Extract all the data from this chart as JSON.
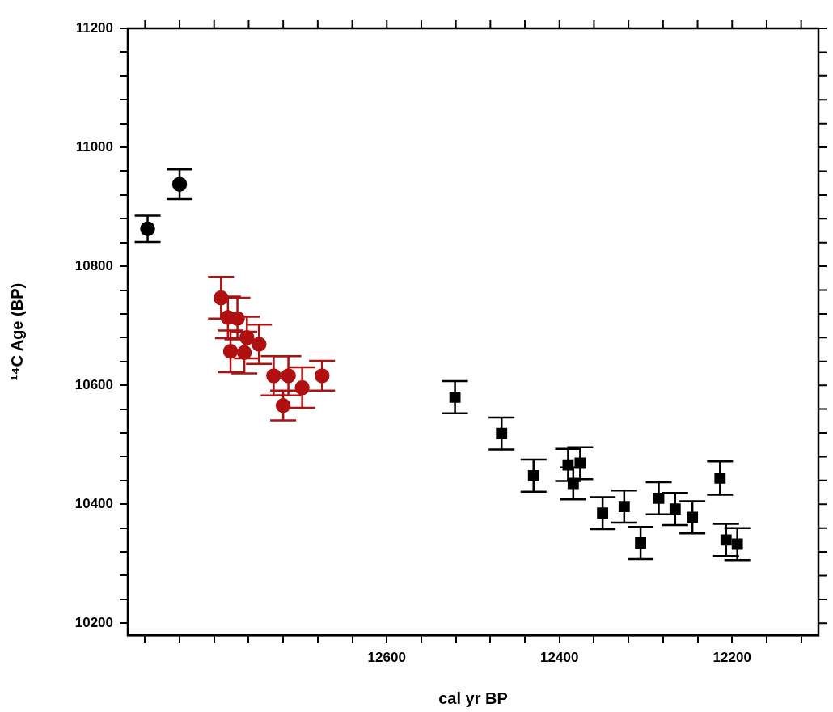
{
  "chart_data": {
    "type": "scatter",
    "xlabel": "cal yr BP",
    "ylabel": "¹⁴C Age (BP)",
    "xlim": [
      12900,
      12100
    ],
    "xticks": [
      {
        "value": 12880,
        "label": null
      },
      {
        "value": 12840,
        "label": null
      },
      {
        "value": 12800,
        "label": null
      },
      {
        "value": 12760,
        "label": null
      },
      {
        "value": 12720,
        "label": null
      },
      {
        "value": 12680,
        "label": null
      },
      {
        "value": 12640,
        "label": null
      },
      12600,
      {
        "value": 12560,
        "label": null
      },
      {
        "value": 12520,
        "label": null
      },
      {
        "value": 12480,
        "label": null
      },
      {
        "value": 12440,
        "label": null
      },
      12400,
      {
        "value": 12360,
        "label": null
      },
      {
        "value": 12320,
        "label": null
      },
      {
        "value": 12280,
        "label": null
      },
      {
        "value": 12240,
        "label": null
      },
      12200,
      {
        "value": 12160,
        "label": null
      },
      {
        "value": 12120,
        "label": null
      }
    ],
    "ylim": [
      10180,
      11200
    ],
    "yticks": [
      10200,
      {
        "value": 10240,
        "label": null
      },
      {
        "value": 10280,
        "label": null
      },
      {
        "value": 10320,
        "label": null
      },
      {
        "value": 10360,
        "label": null
      },
      10400,
      {
        "value": 10440,
        "label": null
      },
      {
        "value": 10480,
        "label": null
      },
      {
        "value": 10520,
        "label": null
      },
      {
        "value": 10560,
        "label": null
      },
      10600,
      {
        "value": 10640,
        "label": null
      },
      {
        "value": 10680,
        "label": null
      },
      {
        "value": 10720,
        "label": null
      },
      {
        "value": 10760,
        "label": null
      },
      10800,
      {
        "value": 10840,
        "label": null
      },
      {
        "value": 10880,
        "label": null
      },
      {
        "value": 10920,
        "label": null
      },
      {
        "value": 10960,
        "label": null
      },
      11000,
      {
        "value": 11040,
        "label": null
      },
      {
        "value": 11080,
        "label": null
      },
      {
        "value": 11120,
        "label": null
      },
      {
        "value": 11160,
        "label": null
      },
      11200
    ],
    "grid": false,
    "legend": false,
    "series": [
      {
        "color": "#000000",
        "marker": "circle",
        "x": [
          12877,
          12840
        ],
        "values": [
          10863,
          10938
        ],
        "errors": [
          22,
          25
        ]
      },
      {
        "color": "#b01010",
        "marker": "circle",
        "x": [
          12792,
          12784,
          12773,
          12781,
          12765,
          12762,
          12748,
          12731,
          12714,
          12720,
          12698,
          12675
        ],
        "values": [
          10747,
          10714,
          10712,
          10657,
          10655,
          10680,
          10669,
          10616,
          10616,
          10566,
          10596,
          10616
        ],
        "errors": [
          35,
          35,
          35,
          35,
          35,
          35,
          33,
          33,
          33,
          25,
          34,
          25
        ]
      },
      {
        "color": "#000000",
        "marker": "square",
        "x": [
          12521,
          12467,
          12430,
          12384
        ],
        "values": [
          10580,
          10519,
          10448,
          10435
        ],
        "errors": [
          27,
          27,
          27,
          27
        ]
      },
      {
        "color": "#000000",
        "marker": "square",
        "x": [
          12390,
          12376,
          12350,
          12325,
          12306,
          12285,
          12266,
          12246,
          12214,
          12207,
          12194
        ],
        "values": [
          10466,
          10469,
          10385,
          10396,
          10335,
          10410,
          10392,
          10378,
          10444,
          10340,
          10333
        ],
        "errors": [
          27,
          27,
          27,
          27,
          27,
          27,
          27,
          27,
          28,
          27,
          27
        ]
      }
    ]
  }
}
